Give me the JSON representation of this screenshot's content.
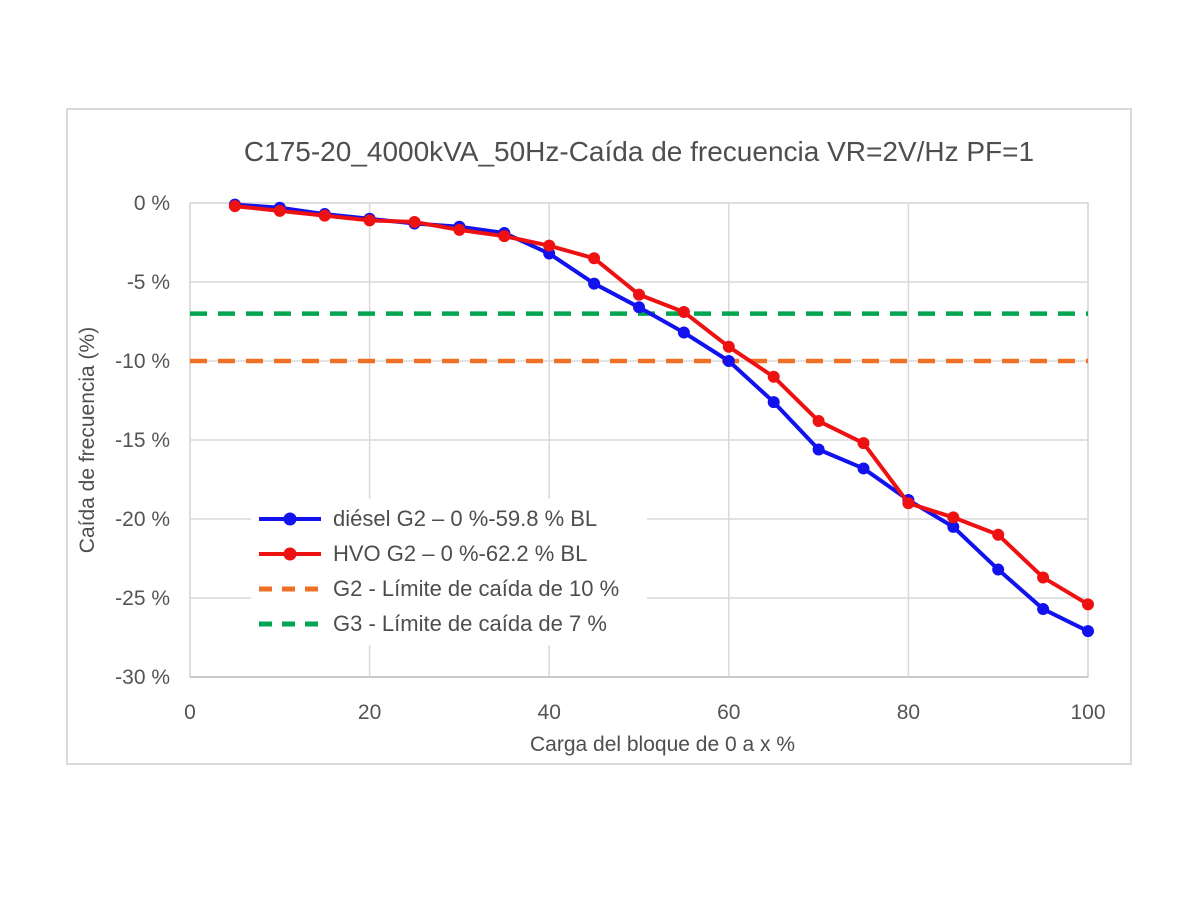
{
  "chart_data": {
    "type": "line",
    "title": "C175-20_4000kVA_50Hz-Caída de frecuencia VR=2V/Hz PF=1",
    "xlabel": "Carga del bloque de 0 a x %",
    "ylabel": "Caída de frecuencia (%)",
    "xlim": [
      0,
      100
    ],
    "ylim": [
      -30,
      0
    ],
    "x_ticks": [
      0,
      20,
      40,
      60,
      80,
      100
    ],
    "x_tick_labels": [
      "0",
      "20",
      "40",
      "60",
      "80",
      "100"
    ],
    "y_ticks": [
      0,
      -5,
      -10,
      -15,
      -20,
      -25,
      -30
    ],
    "y_tick_labels": [
      "0 %",
      "-5 %",
      "-10 %",
      "-15 %",
      "-20 %",
      "-25 %",
      "-30 %"
    ],
    "grid": true,
    "legend_position": "inside lower-left",
    "x": [
      5,
      10,
      15,
      20,
      25,
      30,
      35,
      40,
      45,
      50,
      55,
      60,
      65,
      70,
      75,
      80,
      85,
      90,
      95,
      100
    ],
    "series": [
      {
        "name": "diésel G2 – 0 %-59.8 % BL",
        "color": "#1212ee",
        "style": "solid-circle-markers",
        "values": [
          -0.1,
          -0.3,
          -0.7,
          -1.0,
          -1.3,
          -1.5,
          -1.9,
          -3.2,
          -5.1,
          -6.6,
          -8.2,
          -10.0,
          -12.6,
          -15.6,
          -16.8,
          -18.8,
          -20.5,
          -23.2,
          -25.7,
          -27.1
        ]
      },
      {
        "name": "HVO G2 – 0 %-62.2 % BL",
        "color": "#ee1111",
        "style": "solid-circle-markers",
        "values": [
          -0.2,
          -0.5,
          -0.8,
          -1.1,
          -1.2,
          -1.7,
          -2.1,
          -2.7,
          -3.5,
          -5.8,
          -6.9,
          -9.1,
          -11.0,
          -13.8,
          -15.2,
          -19.0,
          -19.9,
          -21.0,
          -23.7,
          -25.4
        ]
      }
    ],
    "reference_lines": [
      {
        "name": "G2 - Límite de caída de 10 %",
        "color": "#ed7025",
        "style": "dashed",
        "y": -10
      },
      {
        "name": "G3 - Límite de caída de 7 %",
        "color": "#00a550",
        "style": "dashed",
        "y": -7
      }
    ],
    "colors": {
      "grid": "#d9d9d9",
      "axis": "#c2c2c2",
      "tick_text": "#545454"
    }
  }
}
